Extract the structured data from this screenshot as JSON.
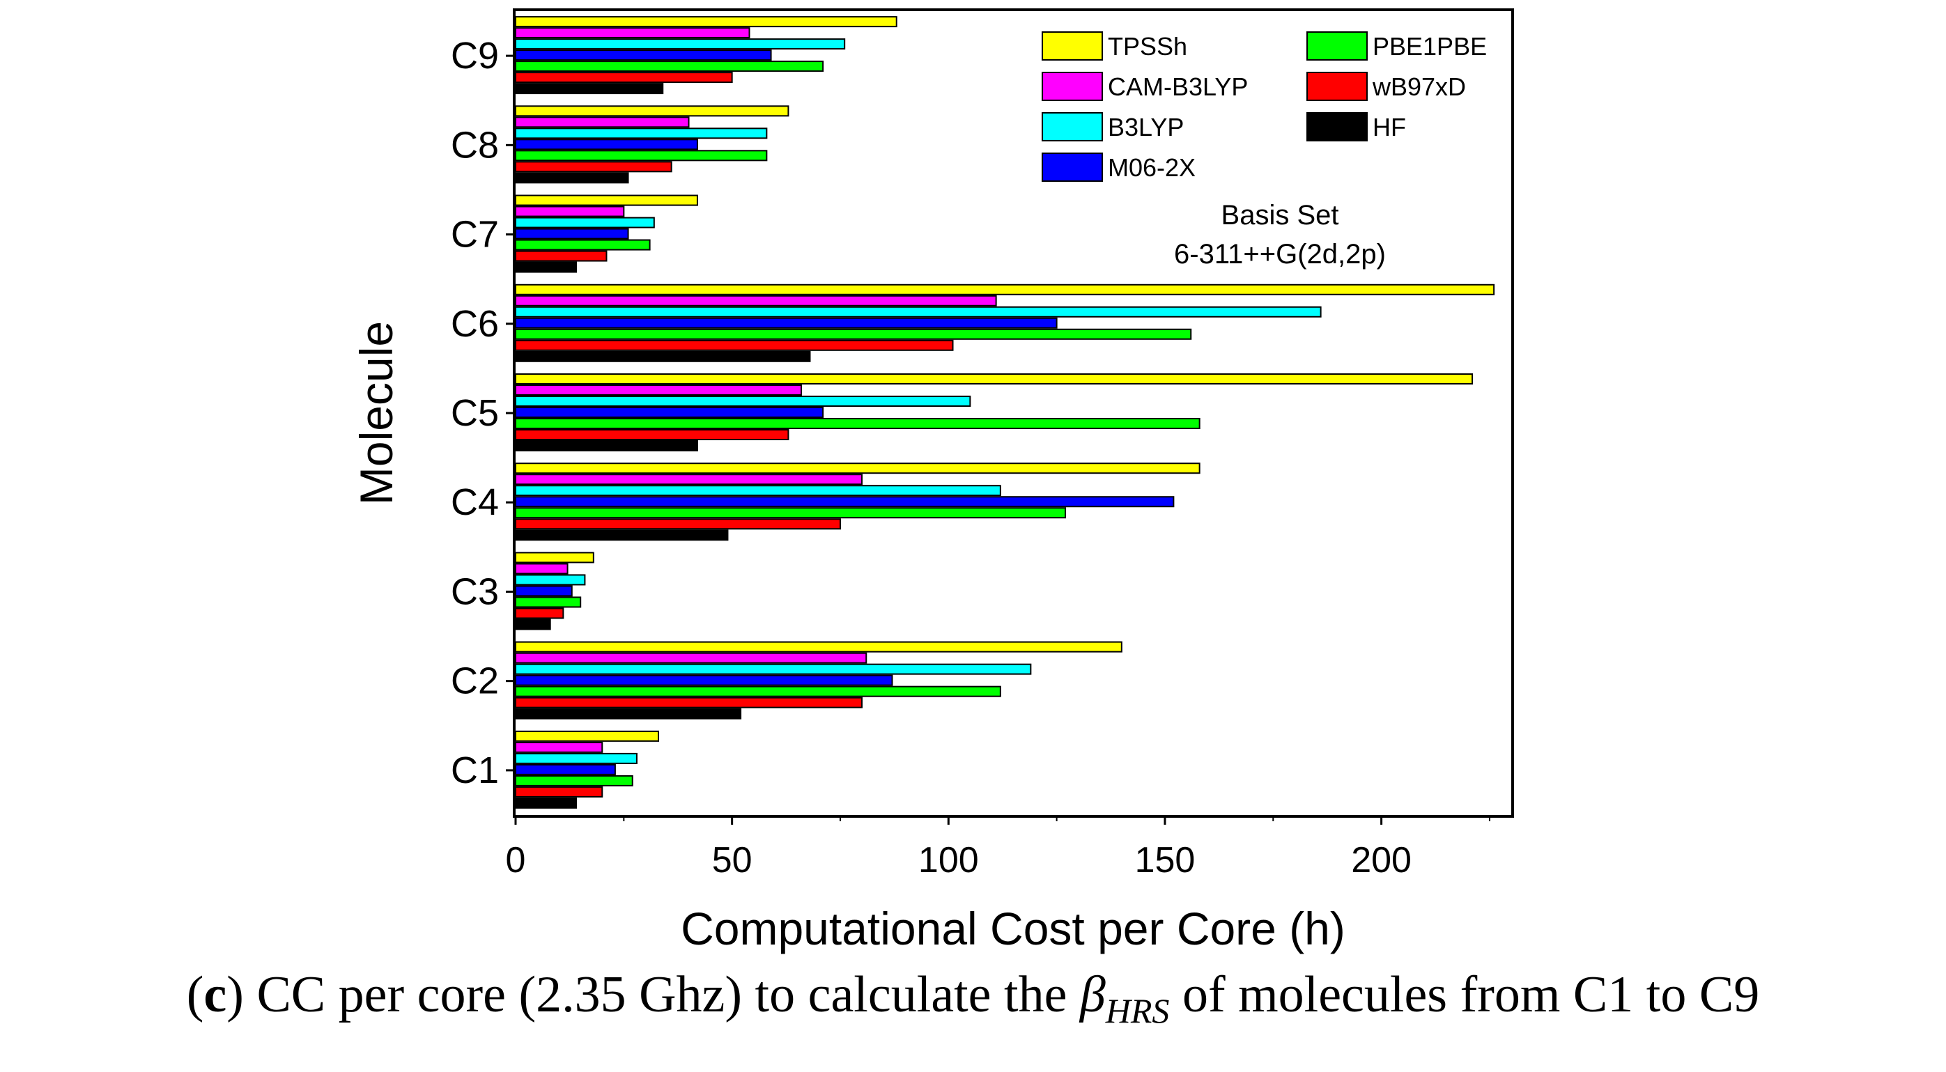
{
  "chart_data": {
    "type": "bar",
    "orientation": "horizontal",
    "categories": [
      "C1",
      "C2",
      "C3",
      "C4",
      "C5",
      "C6",
      "C7",
      "C8",
      "C9"
    ],
    "series": [
      {
        "name": "TPSSh",
        "color": "#ffff00",
        "values": [
          33,
          140,
          18,
          158,
          221,
          226,
          42,
          63,
          88
        ]
      },
      {
        "name": "CAM-B3LYP",
        "color": "#ff00ff",
        "values": [
          20,
          81,
          12,
          80,
          66,
          111,
          25,
          40,
          54
        ]
      },
      {
        "name": "B3LYP",
        "color": "#00ffff",
        "values": [
          28,
          119,
          16,
          112,
          105,
          186,
          32,
          58,
          76
        ]
      },
      {
        "name": "M06-2X",
        "color": "#0000ff",
        "values": [
          23,
          87,
          13,
          152,
          71,
          125,
          26,
          42,
          59
        ]
      },
      {
        "name": "PBE1PBE",
        "color": "#00ff00",
        "values": [
          27,
          112,
          15,
          127,
          158,
          156,
          31,
          58,
          71
        ]
      },
      {
        "name": "wB97xD",
        "color": "#ff0000",
        "values": [
          20,
          80,
          11,
          75,
          63,
          101,
          21,
          36,
          50
        ]
      },
      {
        "name": "HF",
        "color": "#000000",
        "values": [
          14,
          52,
          8,
          49,
          42,
          68,
          14,
          26,
          34
        ]
      }
    ],
    "xlabel": "Computational Cost per Core (h)",
    "ylabel": "Molecule",
    "xlim": [
      0,
      230
    ],
    "xticks": [
      "0",
      "50",
      "100",
      "150",
      "200"
    ],
    "xtick_values": [
      0,
      50,
      100,
      150,
      200
    ],
    "legend_position": "top-right",
    "annotation_line1": "Basis Set",
    "annotation_line2": "6-311++G(2d,2p)"
  },
  "caption": {
    "label": "c",
    "text_before": " CC per core (2.35 Ghz) to calculate the ",
    "symbol": "β",
    "subscript": "HRS",
    "text_after": " of molecules from C1 to C9"
  }
}
